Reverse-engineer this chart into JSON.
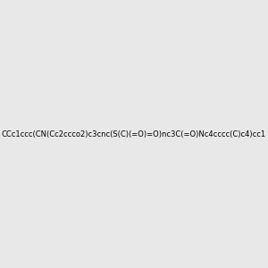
{
  "smiles": "CCc1ccc(CN(Cc2ccco2)c3cnc(S(C)(=O)=O)nc3C(=O)Nc4cccc(C)c4)cc1",
  "background_color": "#e8e8e8",
  "image_size": 300,
  "title": ""
}
